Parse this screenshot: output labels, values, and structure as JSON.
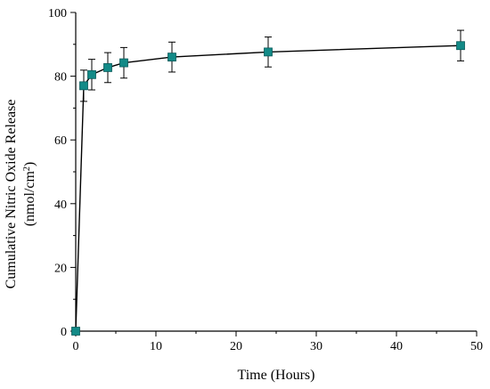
{
  "chart_data": {
    "type": "line",
    "xlabel": "Time (Hours)",
    "ylabel_line1": "Cumulative Nitric Oxide Release",
    "ylabel_line2_prefix": "(nmol/cm",
    "ylabel_line2_sup": "2",
    "ylabel_line2_suffix": ")",
    "xlim": [
      0,
      50
    ],
    "ylim": [
      0,
      100
    ],
    "x_ticks": [
      "0",
      "10",
      "20",
      "30",
      "40",
      "50"
    ],
    "y_ticks": [
      "0",
      "20",
      "40",
      "60",
      "80",
      "100"
    ],
    "grid": false,
    "marker_color": "#138a87",
    "line_color": "#000000",
    "series": [
      {
        "x": [
          0,
          1,
          2,
          4,
          6,
          12,
          24,
          48
        ],
        "y": [
          0,
          77,
          80.5,
          82.7,
          84.2,
          86,
          87.6,
          89.6
        ],
        "err": [
          0,
          4.9,
          4.8,
          4.7,
          4.8,
          4.7,
          4.7,
          4.8
        ]
      }
    ]
  }
}
